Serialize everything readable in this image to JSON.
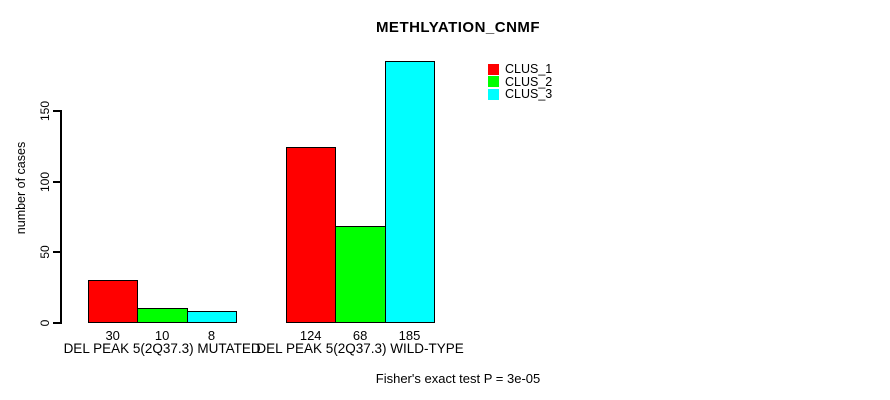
{
  "chart_data": {
    "type": "bar",
    "title": "METHLYATION_CNMF",
    "ylabel": "number of cases",
    "xlabel": "",
    "yticks": [
      0,
      50,
      100,
      150
    ],
    "ylim": [
      0,
      190
    ],
    "grid": false,
    "legend_position": "top-right",
    "categories": [
      "DEL PEAK  5(2Q37.3) MUTATED",
      "DEL PEAK  5(2Q37.3) WILD-TYPE"
    ],
    "series": [
      {
        "name": "CLUS_1",
        "color": "#ff0000",
        "values": [
          30,
          124
        ]
      },
      {
        "name": "CLUS_2",
        "color": "#00ff00",
        "values": [
          10,
          68
        ]
      },
      {
        "name": "CLUS_3",
        "color": "#00ffff",
        "values": [
          8,
          185
        ]
      }
    ],
    "bar_value_labels": [
      [
        "30",
        "10",
        "8"
      ],
      [
        "124",
        "68",
        "185"
      ]
    ],
    "footer": "Fisher's exact test P = 3e-05"
  }
}
